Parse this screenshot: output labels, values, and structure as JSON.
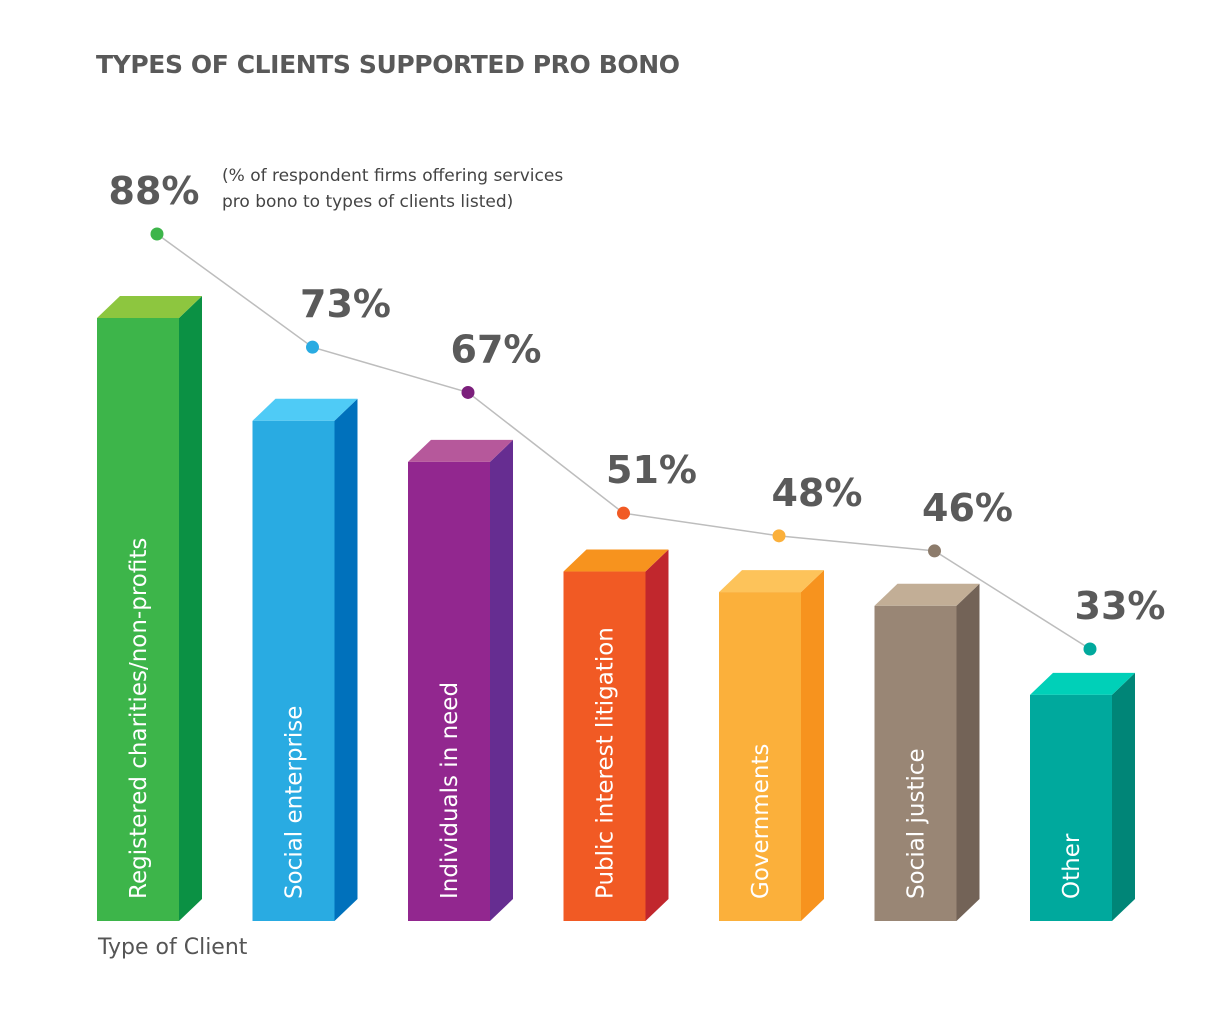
{
  "chart_data": {
    "type": "bar",
    "title": "TYPES OF CLIENTS SUPPORTED PRO BONO",
    "note": "(% of respondent firms offering services\npro bono to types of clients listed)",
    "xlabel": "Type of Client",
    "ylabel": "",
    "ylim": [
      0,
      100
    ],
    "grid": false,
    "categories": [
      "Registered charities/non-profits",
      "Social enterprise",
      "Individuals in need",
      "Public interest litigation",
      "Governments",
      "Social justice",
      "Other"
    ],
    "values": [
      88,
      73,
      67,
      51,
      48,
      46,
      33
    ],
    "value_labels": [
      "88%",
      "73%",
      "67%",
      "51%",
      "48%",
      "46%",
      "33%"
    ],
    "trend_line": true,
    "colors": [
      {
        "front": "#3db54a",
        "side": "#0b9144",
        "top": "#8dc63f",
        "marker": "#3db54a"
      },
      {
        "front": "#29abe2",
        "side": "#0071bc",
        "top": "#4fcbf6",
        "marker": "#29abe2"
      },
      {
        "front": "#92278f",
        "side": "#662d91",
        "top": "#b6589b",
        "marker": "#7b1f7b"
      },
      {
        "front": "#f15a24",
        "side": "#c1272d",
        "top": "#f7931e",
        "marker": "#f15a24"
      },
      {
        "front": "#fbb03b",
        "side": "#f7931e",
        "top": "#fdc35a",
        "marker": "#fbb03b"
      },
      {
        "front": "#998675",
        "side": "#736357",
        "top": "#c2ae96",
        "marker": "#8c7b6b"
      },
      {
        "front": "#00a99d",
        "side": "#008577",
        "top": "#00d0b8",
        "marker": "#00a99d"
      }
    ]
  }
}
